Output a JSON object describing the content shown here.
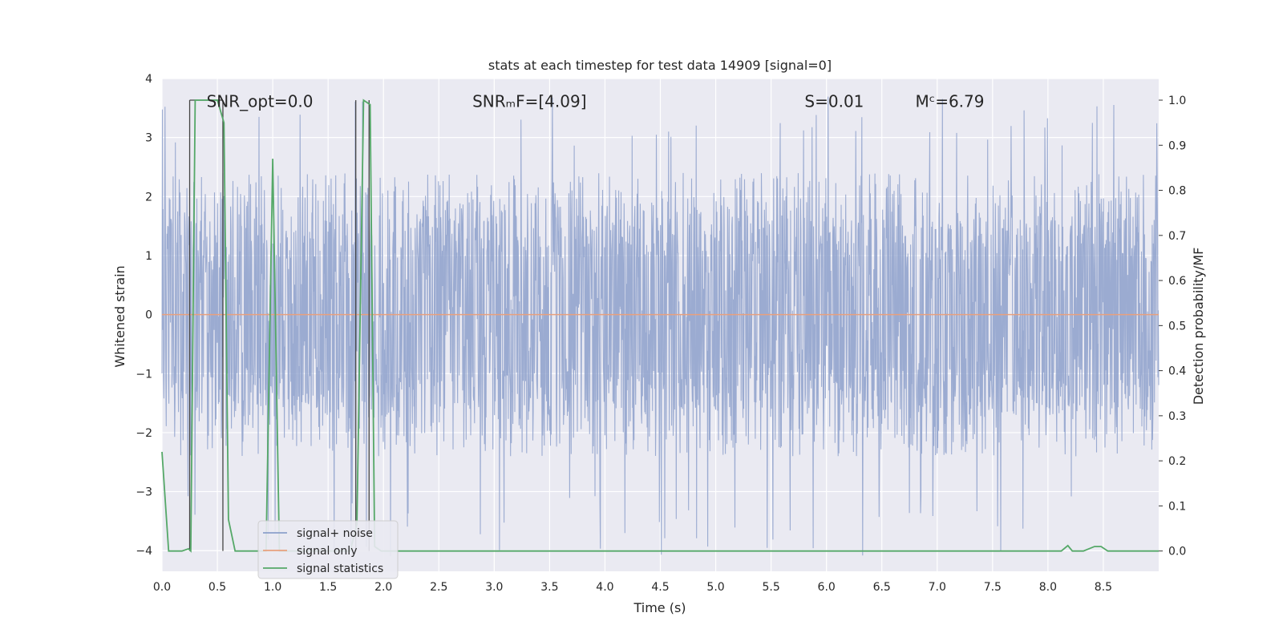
{
  "chart_data": {
    "type": "line",
    "title": "stats at each timestep for test data 14909 [signal=0]",
    "xlabel": "Time (s)",
    "ylabel": "Whitened strain",
    "ylabel_right": "Detection probability/MF",
    "xlim": [
      0,
      9.0
    ],
    "ylim": [
      -4.35,
      4.0
    ],
    "ylim_right": [
      -0.045,
      1.048
    ],
    "x_ticks": [
      0.0,
      0.5,
      1.0,
      1.5,
      2.0,
      2.5,
      3.0,
      3.5,
      4.0,
      4.5,
      5.0,
      5.5,
      6.0,
      6.5,
      7.0,
      7.5,
      8.0,
      8.5
    ],
    "x_tick_labels": [
      "0.0",
      "0.5",
      "1.0",
      "1.5",
      "2.0",
      "2.5",
      "3.0",
      "3.5",
      "4.0",
      "4.5",
      "5.0",
      "5.5",
      "6.0",
      "6.5",
      "7.0",
      "7.5",
      "8.0",
      "8.5"
    ],
    "y_ticks": [
      -4,
      -3,
      -2,
      -1,
      0,
      1,
      2,
      3,
      4
    ],
    "y_tick_labels": [
      "−4",
      "−3",
      "−2",
      "−1",
      "0",
      "1",
      "2",
      "3",
      "4"
    ],
    "y_right_ticks": [
      0.0,
      0.1,
      0.2,
      0.3,
      0.4,
      0.5,
      0.6,
      0.7,
      0.8,
      0.9,
      1.0
    ],
    "y_right_tick_labels": [
      "0.0",
      "0.1",
      "0.2",
      "0.3",
      "0.4",
      "0.5",
      "0.6",
      "0.7",
      "0.8",
      "0.9",
      "1.0"
    ],
    "annotations": [
      {
        "text": "SNR_opt=0.0",
        "x": 0.2,
        "y": 3.6
      },
      {
        "text": "SNRₘF=[4.09]",
        "x": 2.6,
        "y": 3.6
      },
      {
        "text": "S=0.01",
        "x": 5.6,
        "y": 3.6
      },
      {
        "text": "Mᶜ=6.79",
        "x": 6.6,
        "y": 3.6
      }
    ],
    "series": [
      {
        "name": "signal+ noise",
        "color": "#8da0cb",
        "axis": "left",
        "kind": "noise",
        "envelope": {
          "typical_min": -2.4,
          "typical_max": 2.4,
          "extreme_min": -4.1,
          "extreme_max": 3.8
        }
      },
      {
        "name": "signal only",
        "color": "#e8a07e",
        "axis": "left",
        "x": [
          0.0,
          9.0
        ],
        "y": [
          0.0,
          0.0
        ]
      },
      {
        "name": "signal statistics",
        "color": "#55a868",
        "axis": "right",
        "x": [
          0.0,
          0.06,
          0.18,
          0.24,
          0.26,
          0.3,
          0.5,
          0.56,
          0.6,
          0.66,
          0.7,
          0.94,
          1.0,
          1.06,
          1.1,
          1.2,
          1.7,
          1.76,
          1.82,
          1.88,
          1.92,
          1.98,
          8.12,
          8.18,
          8.22,
          8.32,
          8.42,
          8.48,
          8.54,
          8.6,
          9.0
        ],
        "y": [
          0.22,
          0.0,
          0.0,
          0.005,
          0.0,
          1.0,
          1.0,
          0.95,
          0.07,
          0.0,
          0.0,
          0.0,
          0.87,
          0.0,
          0.0,
          0.0,
          0.0,
          0.06,
          1.0,
          0.99,
          0.01,
          0.0,
          0.0,
          0.012,
          0.0,
          0.0,
          0.01,
          0.01,
          0.0,
          0.0,
          0.0
        ]
      },
      {
        "name": "markers",
        "color": "#444444",
        "axis": "right",
        "kind": "vlines",
        "x": [
          0.25,
          0.55,
          1.75,
          1.87
        ],
        "y0": [
          0.0,
          0.0,
          0.0,
          0.0
        ],
        "y1": [
          1.0,
          1.0,
          1.0,
          1.0
        ]
      }
    ],
    "legend": {
      "placement": "lower-left",
      "items": [
        "signal+ noise",
        "signal only",
        "signal statistics"
      ]
    },
    "grid": true
  }
}
